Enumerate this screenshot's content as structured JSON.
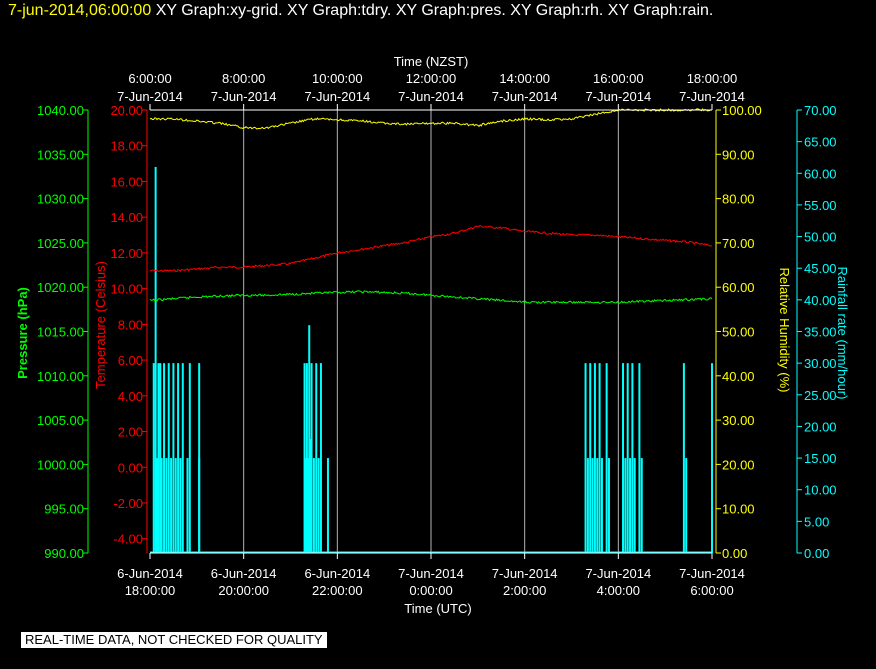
{
  "header": {
    "timestamp": "7-jun-2014,06:00:00",
    "titles": [
      "XY Graph:xy-grid.",
      "XY Graph:tdry.",
      "XY Graph:pres.",
      "XY Graph:rh.",
      "XY Graph:rain."
    ]
  },
  "footer": {
    "notice": "REAL-TIME DATA, NOT CHECKED FOR QUALITY"
  },
  "colors": {
    "background": "#000000",
    "pressure": "#00ff00",
    "temperature": "#ff0000",
    "humidity": "#ffff00",
    "rain": "#00ffff",
    "grid": "#ffffff"
  },
  "chart_data": {
    "type": "line",
    "x_top": {
      "label": "Time (NZST)",
      "ticks": [
        {
          "time": "6:00:00",
          "date": "7-Jun-2014"
        },
        {
          "time": "8:00:00",
          "date": "7-Jun-2014"
        },
        {
          "time": "10:00:00",
          "date": "7-Jun-2014"
        },
        {
          "time": "12:00:00",
          "date": "7-Jun-2014"
        },
        {
          "time": "14:00:00",
          "date": "7-Jun-2014"
        },
        {
          "time": "16:00:00",
          "date": "7-Jun-2014"
        },
        {
          "time": "18:00:00",
          "date": "7-Jun-2014"
        }
      ]
    },
    "x_bottom": {
      "label": "Time (UTC)",
      "ticks": [
        {
          "date": "6-Jun-2014",
          "time": "18:00:00"
        },
        {
          "date": "6-Jun-2014",
          "time": "20:00:00"
        },
        {
          "date": "6-Jun-2014",
          "time": "22:00:00"
        },
        {
          "date": "7-Jun-2014",
          "time": "0:00:00"
        },
        {
          "date": "7-Jun-2014",
          "time": "2:00:00"
        },
        {
          "date": "7-Jun-2014",
          "time": "4:00:00"
        },
        {
          "date": "7-Jun-2014",
          "time": "6:00:00"
        }
      ]
    },
    "x_range_hours_utc": [
      -6,
      6
    ],
    "axes": {
      "pressure": {
        "label": "Pressure (hPa)",
        "range": [
          990,
          1040
        ],
        "ticks": [
          "990.00",
          "995.00",
          "1000.00",
          "1005.00",
          "1010.00",
          "1015.00",
          "1020.00",
          "1025.00",
          "1030.00",
          "1035.00",
          "1040.00"
        ]
      },
      "temperature": {
        "label": "Temperature (Celsius)",
        "range": [
          -4.8,
          20
        ],
        "ticks": [
          "-4.00",
          "-2.00",
          "0.00",
          "2.00",
          "4.00",
          "6.00",
          "8.00",
          "10.00",
          "12.00",
          "14.00",
          "16.00",
          "18.00",
          "20.00"
        ]
      },
      "humidity": {
        "label": "Relative Humidity (%)",
        "range": [
          0,
          100
        ],
        "ticks": [
          "0.00",
          "10.00",
          "20.00",
          "30.00",
          "40.00",
          "50.00",
          "60.00",
          "70.00",
          "80.00",
          "90.00",
          "100.00"
        ]
      },
      "rain": {
        "label": "Rainfall rate (mm/hour)",
        "range": [
          0,
          70
        ],
        "ticks": [
          "0.00",
          "5.00",
          "10.00",
          "15.00",
          "20.00",
          "25.00",
          "30.00",
          "35.00",
          "40.00",
          "45.00",
          "50.00",
          "55.00",
          "60.00",
          "65.00",
          "70.00"
        ]
      }
    },
    "grid": true,
    "series": [
      {
        "name": "Temperature",
        "axis": "temperature",
        "points": [
          [
            -6,
            11
          ],
          [
            -5.5,
            11
          ],
          [
            -5,
            11.1
          ],
          [
            -4.5,
            11.2
          ],
          [
            -4,
            11.2
          ],
          [
            -3.5,
            11.3
          ],
          [
            -3,
            11.4
          ],
          [
            -2.5,
            11.7
          ],
          [
            -2,
            12
          ],
          [
            -1.5,
            12.2
          ],
          [
            -1,
            12.4
          ],
          [
            -0.5,
            12.6
          ],
          [
            0,
            12.9
          ],
          [
            0.5,
            13.1
          ],
          [
            1,
            13.5
          ],
          [
            1.5,
            13.4
          ],
          [
            2,
            13.2
          ],
          [
            2.5,
            13.1
          ],
          [
            3,
            13
          ],
          [
            3.5,
            13
          ],
          [
            4,
            12.9
          ],
          [
            4.5,
            12.8
          ],
          [
            5,
            12.7
          ],
          [
            5.5,
            12.6
          ],
          [
            6,
            12.4
          ]
        ]
      },
      {
        "name": "Pressure",
        "axis": "pressure",
        "points": [
          [
            -6,
            1018.5
          ],
          [
            -5.5,
            1018.7
          ],
          [
            -5,
            1018.9
          ],
          [
            -4.5,
            1019
          ],
          [
            -4,
            1019.1
          ],
          [
            -3.5,
            1019.1
          ],
          [
            -3,
            1019.2
          ],
          [
            -2.5,
            1019.3
          ],
          [
            -2,
            1019.4
          ],
          [
            -1.5,
            1019.5
          ],
          [
            -1,
            1019.4
          ],
          [
            -0.5,
            1019.3
          ],
          [
            0,
            1019.1
          ],
          [
            0.5,
            1018.9
          ],
          [
            1,
            1018.7
          ],
          [
            1.5,
            1018.5
          ],
          [
            2,
            1018.3
          ],
          [
            2.5,
            1018.3
          ],
          [
            3,
            1018.3
          ],
          [
            3.5,
            1018.3
          ],
          [
            4,
            1018.3
          ],
          [
            4.5,
            1018.4
          ],
          [
            5,
            1018.5
          ],
          [
            5.5,
            1018.6
          ],
          [
            6,
            1018.7
          ]
        ]
      },
      {
        "name": "Relative Humidity",
        "axis": "humidity",
        "points": [
          [
            -6,
            98
          ],
          [
            -5.5,
            98
          ],
          [
            -5,
            97.5
          ],
          [
            -4.5,
            97
          ],
          [
            -4,
            96
          ],
          [
            -3.5,
            96
          ],
          [
            -3,
            97
          ],
          [
            -2.5,
            98
          ],
          [
            -2,
            97.8
          ],
          [
            -1.5,
            97.5
          ],
          [
            -1,
            97
          ],
          [
            -0.5,
            96.8
          ],
          [
            0,
            97
          ],
          [
            0.5,
            97
          ],
          [
            1,
            96.5
          ],
          [
            1.5,
            97.5
          ],
          [
            2,
            98
          ],
          [
            2.5,
            97.8
          ],
          [
            3,
            98
          ],
          [
            3.5,
            99
          ],
          [
            4,
            100
          ],
          [
            4.5,
            100
          ],
          [
            5,
            100
          ],
          [
            5.5,
            100
          ],
          [
            6,
            100
          ]
        ]
      }
    ],
    "rain_bars": {
      "name": "Rainfall rate",
      "axis": "rain",
      "points": [
        [
          -5.92,
          30
        ],
        [
          -5.88,
          61
        ],
        [
          -5.85,
          15
        ],
        [
          -5.82,
          30
        ],
        [
          -5.78,
          30
        ],
        [
          -5.75,
          15
        ],
        [
          -5.7,
          30
        ],
        [
          -5.65,
          15
        ],
        [
          -5.6,
          30
        ],
        [
          -5.55,
          15
        ],
        [
          -5.5,
          30
        ],
        [
          -5.45,
          15
        ],
        [
          -5.4,
          30
        ],
        [
          -5.35,
          15
        ],
        [
          -5.3,
          30
        ],
        [
          -5.2,
          15
        ],
        [
          -5.15,
          30
        ],
        [
          -4.95,
          30
        ],
        [
          -4.95,
          15
        ],
        [
          -2.7,
          30
        ],
        [
          -2.68,
          15
        ],
        [
          -2.65,
          30
        ],
        [
          -2.62,
          15
        ],
        [
          -2.6,
          36
        ],
        [
          -2.58,
          18
        ],
        [
          -2.55,
          30
        ],
        [
          -2.5,
          15
        ],
        [
          -2.45,
          30
        ],
        [
          -2.4,
          15
        ],
        [
          -2.35,
          30
        ],
        [
          -2.2,
          15
        ],
        [
          3.3,
          30
        ],
        [
          3.35,
          15
        ],
        [
          3.4,
          30
        ],
        [
          3.45,
          15
        ],
        [
          3.5,
          30
        ],
        [
          3.55,
          15
        ],
        [
          3.6,
          30
        ],
        [
          3.65,
          15
        ],
        [
          3.75,
          30
        ],
        [
          3.8,
          15
        ],
        [
          4.1,
          30
        ],
        [
          4.15,
          15
        ],
        [
          4.2,
          30
        ],
        [
          4.25,
          15
        ],
        [
          4.3,
          30
        ],
        [
          4.35,
          15
        ],
        [
          4.45,
          30
        ],
        [
          4.5,
          15
        ],
        [
          5.4,
          30
        ],
        [
          5.45,
          15
        ],
        [
          6,
          30
        ]
      ]
    }
  }
}
